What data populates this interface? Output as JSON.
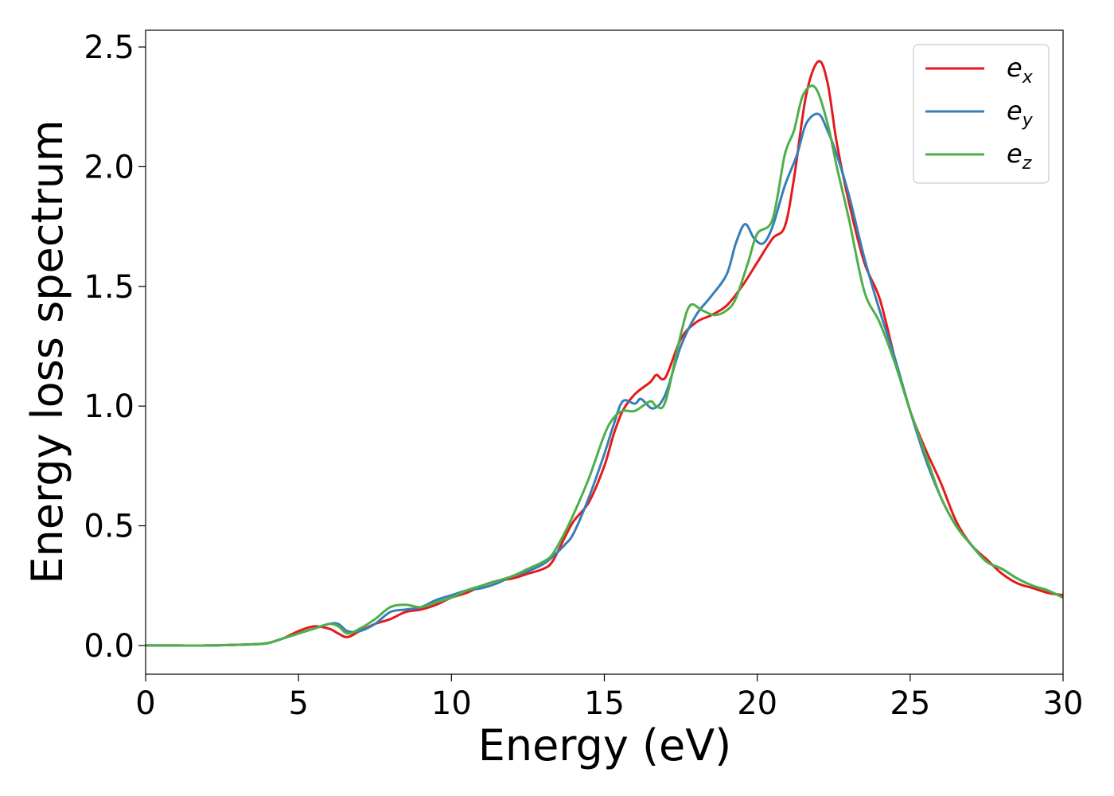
{
  "chart_data": {
    "type": "line",
    "title": "",
    "xlabel": "Energy (eV)",
    "ylabel": "Energy loss spectrum",
    "xlim": [
      0,
      30
    ],
    "ylim": [
      -0.12,
      2.57
    ],
    "xticks": [
      0,
      5,
      10,
      15,
      20,
      25,
      30
    ],
    "xtick_labels": [
      "0",
      "5",
      "10",
      "15",
      "20",
      "25",
      "30"
    ],
    "yticks": [
      0.0,
      0.5,
      1.0,
      1.5,
      2.0,
      2.5
    ],
    "ytick_labels": [
      "0.0",
      "0.5",
      "1.0",
      "1.5",
      "2.0",
      "2.5"
    ],
    "grid": false,
    "legend_position": "top-right",
    "series": [
      {
        "name": "e_x",
        "legend_base": "e",
        "legend_sub": "x",
        "color": "#e41a1c",
        "x": [
          0,
          1,
          2,
          3,
          3.5,
          4,
          4.5,
          5,
          5.5,
          6,
          6.3,
          6.6,
          7,
          7.5,
          8,
          8.5,
          9,
          9.5,
          10,
          10.5,
          11,
          11.5,
          12,
          12.5,
          13,
          13.3,
          13.7,
          14,
          14.5,
          15,
          15.3,
          15.6,
          16,
          16.5,
          16.7,
          17,
          17.5,
          18,
          18.5,
          19,
          19.5,
          20,
          20.5,
          20.9,
          21.2,
          21.6,
          22,
          22.3,
          22.6,
          23,
          23.5,
          24,
          24.5,
          25,
          25.5,
          26,
          26.5,
          27,
          27.5,
          28,
          28.5,
          29,
          29.5,
          30
        ],
        "y": [
          0.0,
          0.0,
          0.0,
          0.003,
          0.005,
          0.01,
          0.03,
          0.06,
          0.08,
          0.07,
          0.05,
          0.035,
          0.06,
          0.09,
          0.11,
          0.14,
          0.15,
          0.17,
          0.2,
          0.22,
          0.25,
          0.27,
          0.28,
          0.3,
          0.32,
          0.35,
          0.45,
          0.52,
          0.6,
          0.75,
          0.88,
          0.98,
          1.05,
          1.1,
          1.13,
          1.12,
          1.28,
          1.35,
          1.38,
          1.42,
          1.5,
          1.6,
          1.7,
          1.75,
          1.95,
          2.3,
          2.44,
          2.35,
          2.1,
          1.85,
          1.6,
          1.45,
          1.2,
          0.98,
          0.82,
          0.68,
          0.52,
          0.42,
          0.36,
          0.3,
          0.26,
          0.24,
          0.22,
          0.21
        ]
      },
      {
        "name": "e_y",
        "legend_base": "e",
        "legend_sub": "y",
        "color": "#377eb8",
        "x": [
          0,
          1,
          2,
          3,
          3.5,
          4,
          4.5,
          5,
          5.5,
          6,
          6.3,
          6.6,
          7,
          7.5,
          8,
          8.5,
          9,
          9.5,
          10,
          10.5,
          11,
          11.5,
          12,
          12.5,
          13,
          13.3,
          13.7,
          14,
          14.5,
          15,
          15.3,
          15.6,
          16,
          16.2,
          16.6,
          17,
          17.5,
          18,
          18.5,
          19,
          19.3,
          19.6,
          19.9,
          20.2,
          20.5,
          20.9,
          21.3,
          21.6,
          22,
          22.3,
          22.6,
          23,
          23.5,
          24,
          24.5,
          25,
          25.5,
          26,
          26.5,
          27,
          27.5,
          28,
          28.5,
          29,
          29.5,
          30
        ],
        "y": [
          0.0,
          0.0,
          0.0,
          0.003,
          0.005,
          0.01,
          0.03,
          0.05,
          0.07,
          0.09,
          0.09,
          0.06,
          0.06,
          0.09,
          0.14,
          0.15,
          0.16,
          0.19,
          0.21,
          0.23,
          0.24,
          0.26,
          0.29,
          0.31,
          0.34,
          0.37,
          0.42,
          0.47,
          0.62,
          0.8,
          0.92,
          1.02,
          1.01,
          1.03,
          0.99,
          1.05,
          1.25,
          1.38,
          1.46,
          1.55,
          1.68,
          1.76,
          1.7,
          1.68,
          1.75,
          1.92,
          2.05,
          2.18,
          2.22,
          2.15,
          2.05,
          1.88,
          1.62,
          1.4,
          1.2,
          0.98,
          0.78,
          0.62,
          0.5,
          0.42,
          0.35,
          0.32,
          0.28,
          0.25,
          0.23,
          0.2
        ]
      },
      {
        "name": "e_z",
        "legend_base": "e",
        "legend_sub": "z",
        "color": "#4daf4a",
        "x": [
          0,
          1,
          2,
          3,
          3.5,
          4,
          4.5,
          5,
          5.5,
          6,
          6.3,
          6.6,
          7,
          7.5,
          8,
          8.5,
          9,
          9.5,
          10,
          10.5,
          11,
          11.5,
          12,
          12.5,
          13,
          13.3,
          13.7,
          14,
          14.5,
          15,
          15.3,
          15.6,
          16,
          16.5,
          16.7,
          17,
          17.5,
          17.8,
          18.2,
          18.6,
          19,
          19.3,
          19.7,
          20,
          20.5,
          20.9,
          21.2,
          21.5,
          21.9,
          22.3,
          22.6,
          23,
          23.5,
          24,
          24.5,
          25,
          25.5,
          26,
          26.5,
          27,
          27.5,
          28,
          28.5,
          29,
          29.5,
          30
        ],
        "y": [
          0.0,
          0.0,
          0.0,
          0.003,
          0.005,
          0.01,
          0.03,
          0.05,
          0.07,
          0.09,
          0.08,
          0.05,
          0.07,
          0.11,
          0.16,
          0.17,
          0.16,
          0.18,
          0.2,
          0.23,
          0.25,
          0.27,
          0.29,
          0.32,
          0.35,
          0.38,
          0.47,
          0.55,
          0.7,
          0.88,
          0.95,
          0.98,
          0.98,
          1.02,
          1.0,
          1.02,
          1.3,
          1.42,
          1.4,
          1.38,
          1.4,
          1.45,
          1.6,
          1.72,
          1.78,
          2.05,
          2.15,
          2.3,
          2.33,
          2.18,
          2.0,
          1.78,
          1.48,
          1.35,
          1.18,
          0.98,
          0.8,
          0.62,
          0.5,
          0.42,
          0.35,
          0.32,
          0.28,
          0.25,
          0.23,
          0.2
        ]
      }
    ]
  }
}
